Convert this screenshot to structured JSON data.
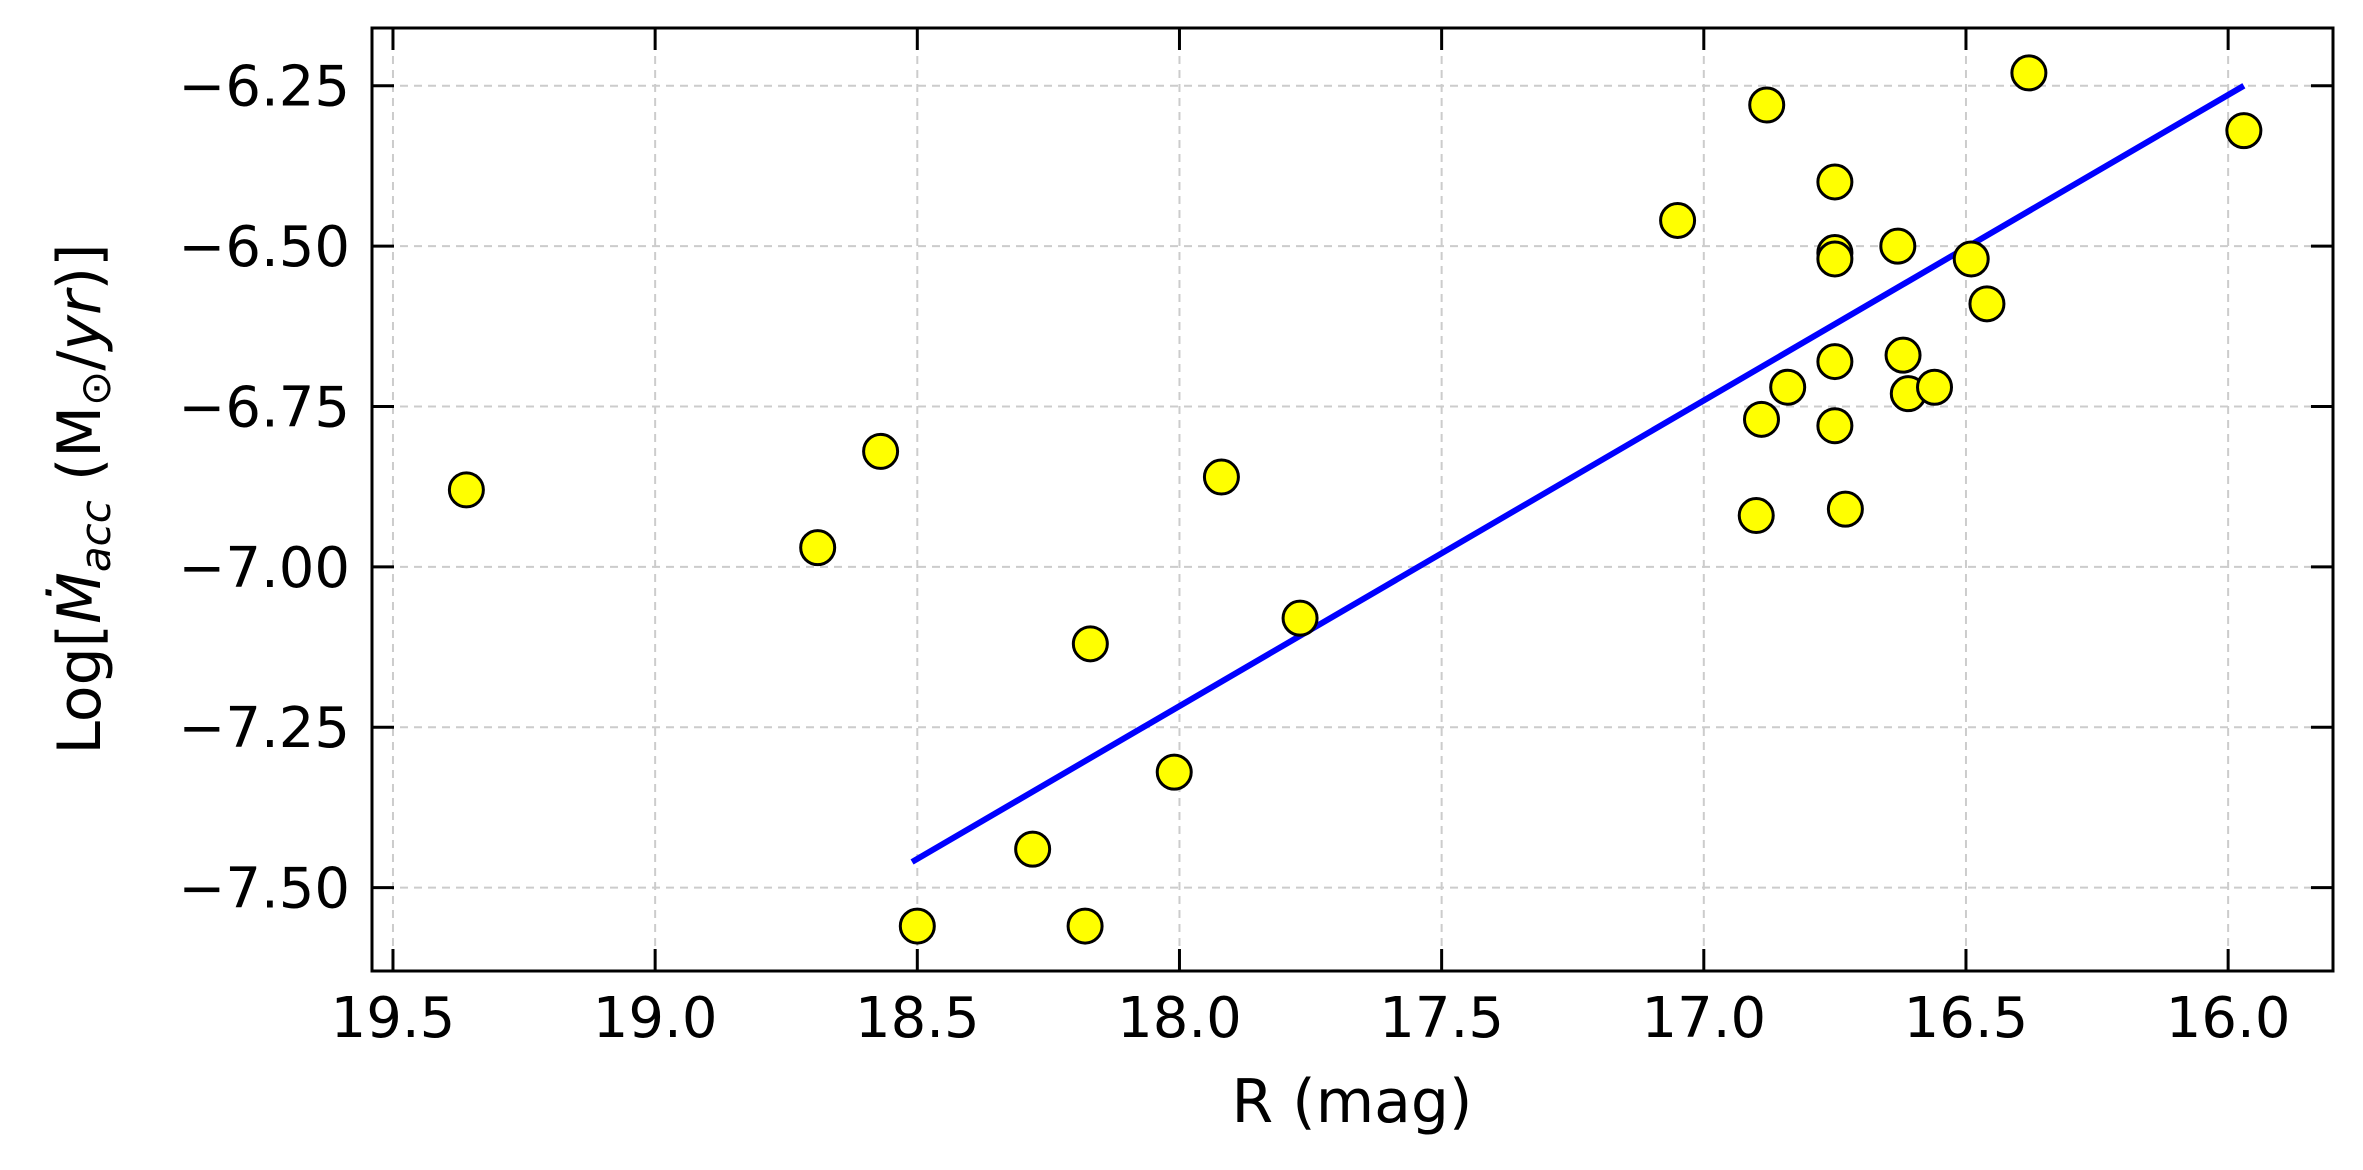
{
  "chart_data": {
    "type": "scatter",
    "xlabel": "R (mag)",
    "ylabel": {
      "prefix": "Log[",
      "symbol": "Ṁ",
      "subscript": "acc",
      "unit_open": " (M",
      "sun": "⊙",
      "unit_mid": "/",
      "unit_italic": "yr",
      "unit_close": ")]"
    },
    "xlim": [
      19.54,
      15.8
    ],
    "ylim": [
      -7.63,
      -6.16
    ],
    "x_inverted": true,
    "xticks": [
      19.5,
      19.0,
      18.5,
      18.0,
      17.5,
      17.0,
      16.5,
      16.0
    ],
    "xtick_labels": [
      "19.5",
      "19.0",
      "18.5",
      "18.0",
      "17.5",
      "17.0",
      "16.5",
      "16.0"
    ],
    "yticks": [
      -6.25,
      -6.5,
      -6.75,
      -7.0,
      -7.25,
      -7.5
    ],
    "ytick_labels": [
      "−6.25",
      "−6.50",
      "−6.75",
      "−7.00",
      "−7.25",
      "−7.50"
    ],
    "grid": true,
    "points": [
      {
        "x": 19.36,
        "y": -6.88
      },
      {
        "x": 18.69,
        "y": -6.97
      },
      {
        "x": 18.57,
        "y": -6.82
      },
      {
        "x": 18.5,
        "y": -7.56
      },
      {
        "x": 18.28,
        "y": -7.44
      },
      {
        "x": 18.18,
        "y": -7.56
      },
      {
        "x": 18.17,
        "y": -7.12
      },
      {
        "x": 18.01,
        "y": -7.32
      },
      {
        "x": 17.92,
        "y": -6.86
      },
      {
        "x": 17.77,
        "y": -7.08
      },
      {
        "x": 17.05,
        "y": -6.46
      },
      {
        "x": 16.9,
        "y": -6.92
      },
      {
        "x": 16.89,
        "y": -6.77
      },
      {
        "x": 16.88,
        "y": -6.28
      },
      {
        "x": 16.84,
        "y": -6.72
      },
      {
        "x": 16.75,
        "y": -6.4
      },
      {
        "x": 16.75,
        "y": -6.51
      },
      {
        "x": 16.75,
        "y": -6.52
      },
      {
        "x": 16.75,
        "y": -6.68
      },
      {
        "x": 16.75,
        "y": -6.78
      },
      {
        "x": 16.73,
        "y": -6.91
      },
      {
        "x": 16.63,
        "y": -6.5
      },
      {
        "x": 16.62,
        "y": -6.67
      },
      {
        "x": 16.61,
        "y": -6.73
      },
      {
        "x": 16.56,
        "y": -6.72
      },
      {
        "x": 16.49,
        "y": -6.52
      },
      {
        "x": 16.46,
        "y": -6.59
      },
      {
        "x": 16.38,
        "y": -6.23
      },
      {
        "x": 15.97,
        "y": -6.32
      }
    ],
    "fit_line": {
      "x": [
        18.51,
        15.97
      ],
      "y": [
        -7.46,
        -6.25
      ]
    },
    "colors": {
      "marker_fill": "#ffff00",
      "marker_edge": "#000000",
      "fit_line": "#0000ff",
      "grid": "#cccccc"
    }
  }
}
